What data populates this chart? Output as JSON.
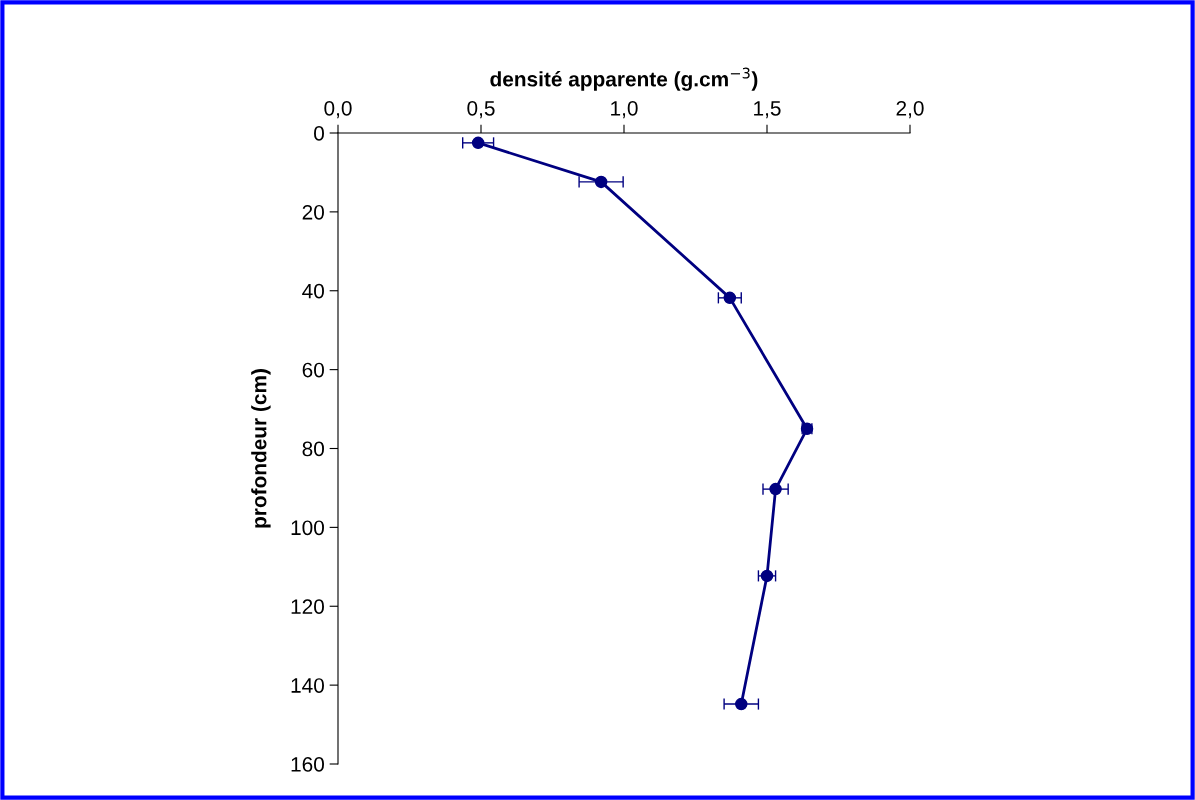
{
  "chart_data": {
    "type": "line",
    "xlabel": "densité apparente (g.cm$^{−3}$)",
    "ylabel": "profondeur (cm)",
    "x": [
      0.49,
      0.92,
      1.37,
      1.64,
      1.53,
      1.5,
      1.41
    ],
    "series": [
      {
        "color": "#000080",
        "values": [
          2.5,
          12.4,
          41.8,
          75,
          90.3,
          112.3,
          144.8
        ],
        "xerrors": [
          0.054,
          0.077,
          0.04,
          0.017,
          0.044,
          0.03,
          0.06
        ]
      }
    ],
    "xlim": [
      0,
      2.0
    ],
    "xticks": [
      {
        "value": 0,
        "label": "0,0"
      },
      {
        "value": 0.5,
        "label": "0,5"
      },
      {
        "value": 1.0,
        "label": "1,0"
      },
      {
        "value": 1.5,
        "label": "1,5"
      },
      {
        "value": 2.0,
        "label": "2,0"
      }
    ],
    "ylim": [
      160,
      0
    ],
    "yticks": [
      0,
      20,
      40,
      60,
      80,
      100,
      120,
      140,
      160
    ],
    "marker": "circle",
    "line_style": "solid",
    "grid": false,
    "legend": false
  }
}
